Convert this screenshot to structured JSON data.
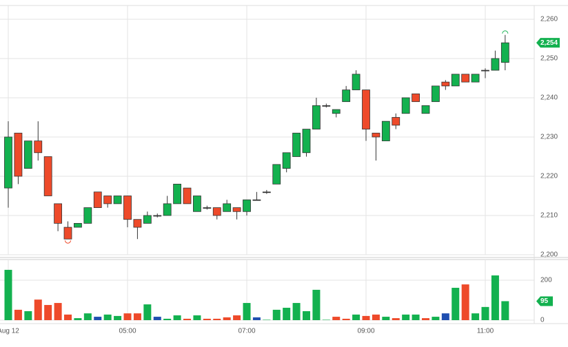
{
  "chart_data": {
    "type": "candlestick",
    "categories": [
      "Aug 12",
      null,
      null,
      null,
      null,
      null,
      null,
      null,
      null,
      null,
      null,
      null,
      "05:00",
      null,
      null,
      null,
      null,
      null,
      null,
      null,
      null,
      null,
      null,
      null,
      "07:00",
      null,
      null,
      null,
      null,
      null,
      null,
      null,
      null,
      null,
      null,
      null,
      "09:00",
      null,
      null,
      null,
      null,
      null,
      null,
      null,
      null,
      null,
      null,
      null,
      "11:00",
      null,
      null
    ],
    "open": [
      2217,
      2231,
      2222,
      2229,
      2225,
      2213,
      2207,
      2207,
      2208,
      2216,
      2215,
      2213,
      2215,
      2209,
      2208,
      2210,
      2210,
      2213,
      2217,
      2211,
      2212,
      2212,
      2211,
      2212,
      2211,
      2214,
      2216,
      2218,
      2222,
      2225,
      2226,
      2232,
      2238,
      2236,
      2239,
      2242,
      2242,
      2231,
      2229,
      2235,
      2236,
      2241,
      2236,
      2239,
      2244,
      2243,
      2246,
      2244,
      2247,
      2247,
      2249
    ],
    "high": [
      2234,
      2231,
      2229,
      2234,
      2225,
      2213,
      2208.5,
      2208,
      2212,
      2216,
      2215,
      2215,
      2215,
      2209,
      2211,
      2210.5,
      2215,
      2218,
      2217,
      2215,
      2212.5,
      2212,
      2214,
      2212,
      2214,
      2216,
      2216.5,
      2223,
      2226,
      2231,
      2232,
      2240,
      2238.5,
      2237,
      2243,
      2247,
      2242,
      2231,
      2234,
      2236,
      2240,
      2241,
      2238,
      2243,
      2244.5,
      2246,
      2246,
      2246,
      2247.5,
      2252,
      2256
    ],
    "low": [
      2212,
      2218,
      2222,
      2224,
      2215,
      2206,
      2204,
      2207,
      2208,
      2212,
      2212,
      2213,
      2207,
      2204,
      2208,
      2209.5,
      2210,
      2213,
      2213,
      2211,
      2211.5,
      2209,
      2211,
      2209,
      2210,
      2214,
      2215.5,
      2218,
      2221,
      2225,
      2225,
      2232,
      2237.5,
      2235,
      2239,
      2242,
      2229,
      2224,
      2229,
      2232,
      2236,
      2239,
      2236,
      2239,
      2242,
      2243,
      2244,
      2244,
      2245,
      2247,
      2247
    ],
    "close": [
      2230,
      2220,
      2229,
      2226,
      2215,
      2208,
      2204,
      2208,
      2212,
      2212,
      2213,
      2215,
      2209,
      2207,
      2210,
      2210,
      2213,
      2218,
      2213,
      2215,
      2212,
      2210,
      2213,
      2211,
      2214,
      2214,
      2216,
      2223,
      2226,
      2231,
      2232,
      2238,
      2238,
      2237,
      2242,
      2246,
      2232,
      2230,
      2234,
      2233,
      2240,
      2239,
      2238,
      2243,
      2243,
      2246,
      2244,
      2246,
      2247,
      2250,
      2254
    ],
    "last_close_label": "2,254",
    "up_color": "#13b14f",
    "down_color": "#ee4a2a",
    "flat_color": "#333333",
    "ylim": [
      2200,
      2263.5
    ],
    "yticks": [
      {
        "value": 2200,
        "label": "2,200"
      },
      {
        "value": 2210,
        "label": "2,210"
      },
      {
        "value": 2220,
        "label": "2,220"
      },
      {
        "value": 2230,
        "label": "2,230"
      },
      {
        "value": 2240,
        "label": "2,240"
      },
      {
        "value": 2250,
        "label": "2,250"
      },
      {
        "value": 2260,
        "label": "2,260"
      }
    ],
    "volume": [
      252,
      52,
      45,
      103,
      76,
      86,
      28,
      10,
      34,
      17,
      28,
      21,
      34,
      34,
      79,
      17,
      7,
      24,
      7,
      24,
      7,
      7,
      14,
      24,
      86,
      14,
      2,
      52,
      62,
      86,
      45,
      152,
      2,
      17,
      7,
      28,
      21,
      28,
      17,
      10,
      28,
      28,
      10,
      17,
      34,
      162,
      179,
      34,
      66,
      224,
      95
    ],
    "volume_colors": [
      "#13b14f",
      "#ee4a2a",
      "#13b14f",
      "#ee4a2a",
      "#ee4a2a",
      "#ee4a2a",
      "#ee4a2a",
      "#13b14f",
      "#13b14f",
      "#1f4fb0",
      "#13b14f",
      "#13b14f",
      "#ee4a2a",
      "#ee4a2a",
      "#13b14f",
      "#1f4fb0",
      "#13b14f",
      "#13b14f",
      "#ee4a2a",
      "#13b14f",
      "#ee4a2a",
      "#ee4a2a",
      "#ee4a2a",
      "#ee4a2a",
      "#13b14f",
      "#1f4fb0",
      "#13b14f",
      "#13b14f",
      "#13b14f",
      "#13b14f",
      "#13b14f",
      "#13b14f",
      "#13b14f",
      "#ee4a2a",
      "#ee4a2a",
      "#13b14f",
      "#ee4a2a",
      "#ee4a2a",
      "#13b14f",
      "#ee4a2a",
      "#13b14f",
      "#13b14f",
      "#ee4a2a",
      "#13b14f",
      "#1f4fb0",
      "#13b14f",
      "#ee4a2a",
      "#13b14f",
      "#13b14f",
      "#13b14f",
      "#13b14f"
    ],
    "volume_ylim": [
      0,
      300
    ],
    "volume_yticks": [
      0,
      200
    ],
    "grid": true
  }
}
